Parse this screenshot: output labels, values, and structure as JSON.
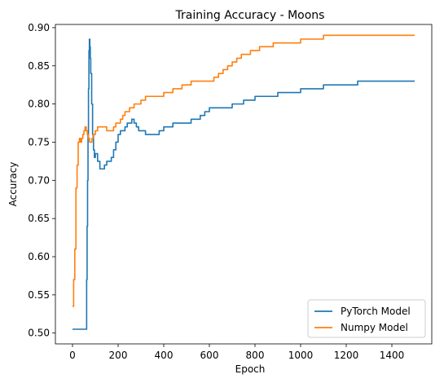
{
  "chart_data": {
    "type": "line",
    "title": "Training Accuracy - Moons",
    "xlabel": "Epoch",
    "ylabel": "Accuracy",
    "xlim": [
      -75,
      1575
    ],
    "ylim": [
      0.4858,
      0.9042
    ],
    "xticks": [
      0,
      200,
      400,
      600,
      800,
      1000,
      1200,
      1400
    ],
    "yticks": [
      0.5,
      0.55,
      0.6,
      0.65,
      0.7,
      0.75,
      0.8,
      0.85,
      0.9
    ],
    "grid": false,
    "legend_position": "lower-right",
    "series": [
      {
        "name": "PyTorch Model",
        "color": "#1f77b4",
        "x": [
          0,
          60,
          62,
          64,
          66,
          68,
          70,
          72,
          74,
          76,
          78,
          80,
          84,
          88,
          92,
          96,
          100,
          110,
          120,
          130,
          140,
          150,
          160,
          170,
          180,
          190,
          200,
          210,
          220,
          230,
          240,
          250,
          260,
          270,
          280,
          290,
          300,
          320,
          340,
          360,
          380,
          400,
          420,
          440,
          460,
          480,
          500,
          520,
          540,
          560,
          580,
          600,
          650,
          700,
          750,
          800,
          850,
          900,
          950,
          1000,
          1050,
          1100,
          1150,
          1200,
          1250,
          1300,
          1350,
          1400,
          1450,
          1500
        ],
        "y": [
          0.505,
          0.505,
          0.57,
          0.64,
          0.7,
          0.76,
          0.82,
          0.87,
          0.885,
          0.875,
          0.86,
          0.84,
          0.8,
          0.76,
          0.74,
          0.73,
          0.735,
          0.725,
          0.715,
          0.715,
          0.72,
          0.725,
          0.725,
          0.73,
          0.74,
          0.75,
          0.76,
          0.765,
          0.765,
          0.77,
          0.775,
          0.775,
          0.78,
          0.775,
          0.77,
          0.765,
          0.765,
          0.76,
          0.76,
          0.76,
          0.765,
          0.77,
          0.77,
          0.775,
          0.775,
          0.775,
          0.775,
          0.78,
          0.78,
          0.785,
          0.79,
          0.795,
          0.795,
          0.8,
          0.805,
          0.81,
          0.81,
          0.815,
          0.815,
          0.82,
          0.82,
          0.825,
          0.825,
          0.825,
          0.83,
          0.83,
          0.83,
          0.83,
          0.83,
          0.83
        ]
      },
      {
        "name": "Numpy Model",
        "color": "#ff7f0e",
        "x": [
          0,
          5,
          10,
          15,
          20,
          25,
          30,
          35,
          40,
          45,
          50,
          55,
          60,
          65,
          70,
          75,
          80,
          85,
          90,
          100,
          110,
          120,
          130,
          140,
          150,
          160,
          170,
          180,
          190,
          200,
          210,
          220,
          230,
          240,
          250,
          260,
          270,
          280,
          290,
          300,
          320,
          340,
          360,
          380,
          400,
          420,
          440,
          460,
          480,
          500,
          520,
          540,
          560,
          580,
          600,
          620,
          640,
          660,
          680,
          700,
          720,
          740,
          760,
          780,
          800,
          820,
          840,
          860,
          880,
          900,
          950,
          1000,
          1050,
          1100,
          1150,
          1200,
          1250,
          1300,
          1350,
          1400,
          1450,
          1500
        ],
        "y": [
          0.535,
          0.57,
          0.61,
          0.69,
          0.72,
          0.75,
          0.755,
          0.75,
          0.755,
          0.76,
          0.765,
          0.77,
          0.765,
          0.76,
          0.755,
          0.75,
          0.75,
          0.755,
          0.76,
          0.765,
          0.77,
          0.77,
          0.77,
          0.77,
          0.765,
          0.765,
          0.765,
          0.77,
          0.775,
          0.775,
          0.78,
          0.785,
          0.79,
          0.79,
          0.795,
          0.795,
          0.8,
          0.8,
          0.8,
          0.805,
          0.81,
          0.81,
          0.81,
          0.81,
          0.815,
          0.815,
          0.82,
          0.82,
          0.825,
          0.825,
          0.83,
          0.83,
          0.83,
          0.83,
          0.83,
          0.835,
          0.84,
          0.845,
          0.85,
          0.855,
          0.86,
          0.865,
          0.865,
          0.87,
          0.87,
          0.875,
          0.875,
          0.875,
          0.88,
          0.88,
          0.88,
          0.885,
          0.885,
          0.89,
          0.89,
          0.89,
          0.89,
          0.89,
          0.89,
          0.89,
          0.89,
          0.89
        ]
      }
    ]
  }
}
